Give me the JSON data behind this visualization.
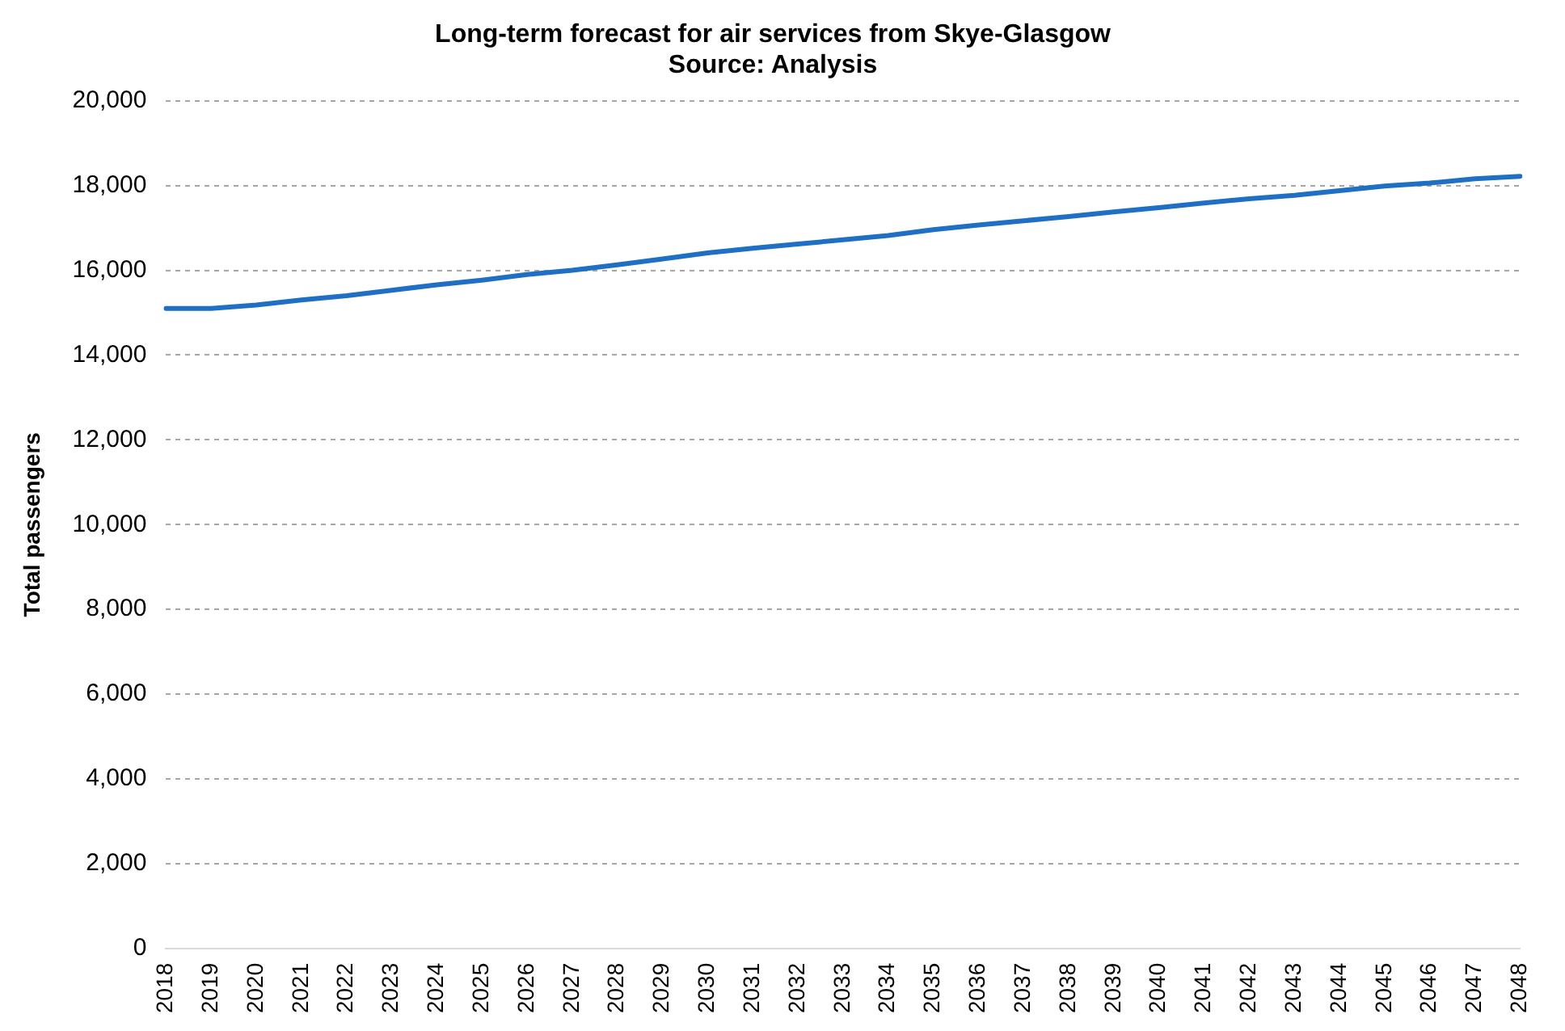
{
  "chart_data": {
    "type": "line",
    "title": "Long-term forecast for air services from Skye-Glasgow",
    "subtitle": "Source: Analysis",
    "ylabel": "Total passengers",
    "categories": [
      "2018",
      "2019",
      "2020",
      "2021",
      "2022",
      "2023",
      "2024",
      "2025",
      "2026",
      "2027",
      "2028",
      "2029",
      "2030",
      "2031",
      "2032",
      "2033",
      "2034",
      "2035",
      "2036",
      "2037",
      "2038",
      "2039",
      "2040",
      "2041",
      "2042",
      "2043",
      "2044",
      "2045",
      "2046",
      "2047",
      "2048"
    ],
    "series": [
      {
        "color": "#1f6fc5",
        "values": [
          15100,
          15100,
          15180,
          15300,
          15400,
          15530,
          15660,
          15770,
          15900,
          16000,
          16130,
          16270,
          16410,
          16520,
          16620,
          16720,
          16820,
          16960,
          17070,
          17170,
          17270,
          17380,
          17480,
          17590,
          17690,
          17770,
          17880,
          17990,
          18060,
          18160,
          18220
        ]
      }
    ],
    "ylim": [
      0,
      20000
    ],
    "yticks": [
      {
        "value": 0,
        "label": "0"
      },
      {
        "value": 2000,
        "label": "2,000"
      },
      {
        "value": 4000,
        "label": "4,000"
      },
      {
        "value": 6000,
        "label": "6,000"
      },
      {
        "value": 8000,
        "label": "8,000"
      },
      {
        "value": 10000,
        "label": "10,000"
      },
      {
        "value": 12000,
        "label": "12,000"
      },
      {
        "value": 14000,
        "label": "14,000"
      },
      {
        "value": 16000,
        "label": "16,000"
      },
      {
        "value": 18000,
        "label": "18,000"
      },
      {
        "value": 20000,
        "label": "20,000"
      }
    ],
    "grid": "y",
    "legend": false,
    "marker": "none",
    "line_style": "solid"
  }
}
